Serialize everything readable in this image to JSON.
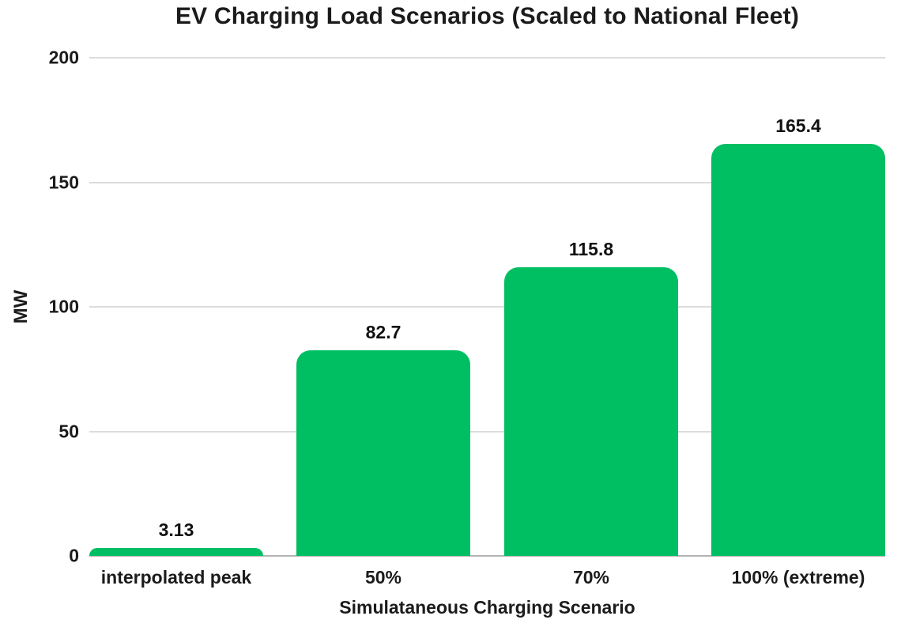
{
  "chart_data": {
    "type": "bar",
    "title": "EV Charging Load Scenarios (Scaled to National Fleet)",
    "xlabel": "Simulataneous Charging Scenario",
    "ylabel": "MW",
    "categories": [
      "interpolated peak",
      "50%",
      "70%",
      "100% (extreme)"
    ],
    "values": [
      3.13,
      82.7,
      115.8,
      165.4
    ],
    "value_labels": [
      "3.13",
      "82.7",
      "115.8",
      "165.4"
    ],
    "ylim": [
      0,
      200
    ],
    "yticks": [
      0,
      50,
      100,
      150,
      200
    ],
    "grid": true,
    "legend": "none",
    "colors": {
      "bar": "#00BF63",
      "text": "#1b1b1b",
      "gridline": "#dcdcdc",
      "baseline": "#b3b3b3",
      "background": "#ffffff"
    }
  }
}
